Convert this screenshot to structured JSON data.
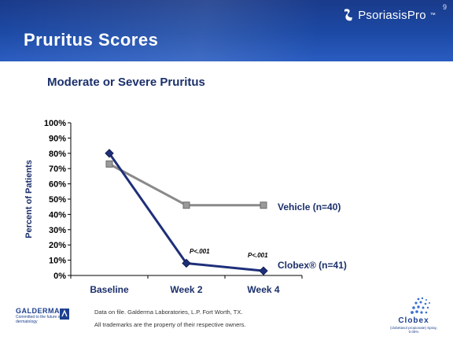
{
  "header": {
    "page_number": "9",
    "brand": "PsoriasisPro",
    "brand_tm": "™",
    "title": "Pruritus Scores"
  },
  "chart_data": {
    "type": "line",
    "title": "Moderate or Severe Pruritus",
    "xlabel": "",
    "ylabel": "Percent of Patients",
    "categories": [
      "Baseline",
      "Week 2",
      "Week 4"
    ],
    "ylim": [
      0,
      100
    ],
    "yticks": [
      "0%",
      "10%",
      "20%",
      "30%",
      "40%",
      "50%",
      "60%",
      "70%",
      "80%",
      "90%",
      "100%"
    ],
    "grid": false,
    "series": [
      {
        "name": "Vehicle (n=40)",
        "values": [
          73,
          46,
          46
        ],
        "color": "#8a8a8a",
        "marker": "square"
      },
      {
        "name": "Clobex® (n=41)",
        "values": [
          80,
          8,
          3
        ],
        "color": "#1e2f7a",
        "marker": "diamond"
      }
    ],
    "annotations": [
      {
        "label": "P<.001",
        "category": "Week 2"
      },
      {
        "label": "P<.001",
        "category": "Week 4"
      }
    ]
  },
  "footnotes": [
    "Data on file. Galderma Laboratories, L.P. Fort Worth, TX.",
    "All trademarks are the property of their respective owners."
  ],
  "logos": {
    "galderma_name": "GALDERMA",
    "galderma_tagline": "Committed to the future of dermatology",
    "clobex_name": "Clobex",
    "clobex_desc": "(clobetasol propionate) Spray, 0.05%"
  }
}
